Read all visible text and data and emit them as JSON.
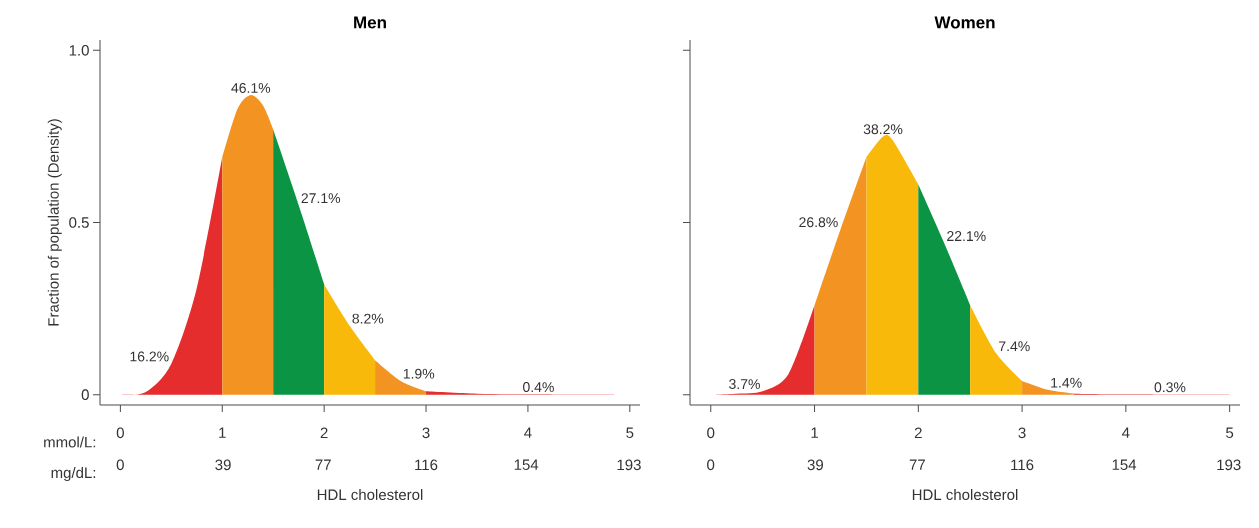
{
  "chart_data": [
    {
      "type": "area",
      "title": "Men",
      "xlabel": "HDL cholesterol",
      "ylabel": "Fraction of population (Density)",
      "xlim": [
        -0.2,
        5.1
      ],
      "xticks": [
        0,
        1,
        2,
        3,
        4,
        5
      ],
      "ylim": [
        -0.03,
        1.03
      ],
      "yticks": [
        0,
        0.5,
        {
          "value": 1,
          "label": "1.0"
        }
      ],
      "x2lim": [
        -7.7,
        197.2
      ],
      "x2ticks": [
        0,
        39,
        77,
        116,
        154,
        193
      ],
      "series": [
        {
          "color": "#e52d2d",
          "x": [
            0,
            0.25,
            0.5,
            0.75,
            1
          ],
          "values": [
            0,
            0.008,
            0.09,
            0.31,
            0.69
          ]
        },
        {
          "color": "#f39322",
          "x": [
            1,
            1.15,
            1.28,
            1.4,
            1.5
          ],
          "values": [
            0.69,
            0.83,
            0.87,
            0.84,
            0.77
          ]
        },
        {
          "color": "#0b9444",
          "x": [
            1.5,
            1.75,
            2
          ],
          "values": [
            0.77,
            0.55,
            0.32
          ]
        },
        {
          "color": "#f9b90b",
          "x": [
            2,
            2.25,
            2.5
          ],
          "values": [
            0.32,
            0.2,
            0.1
          ]
        },
        {
          "color": "#f39322",
          "x": [
            2.5,
            2.75,
            3
          ],
          "values": [
            0.1,
            0.04,
            0.01
          ]
        },
        {
          "color": "#e52d2d",
          "x": [
            3,
            3.5,
            4,
            4.85
          ],
          "values": [
            0.01,
            0.003,
            0.001,
            0
          ]
        }
      ],
      "annotations": [
        "16.2%",
        "46.1%",
        "27.1%",
        "8.2%",
        "1.9%",
        "0.4%",
        "mmol/L:",
        "mg/dL:"
      ]
    },
    {
      "type": "area",
      "title": "Women",
      "xlabel": "HDL cholesterol",
      "tick_labels": "x",
      "xlim": [
        -0.2,
        5.1
      ],
      "xticks": [
        0,
        1,
        2,
        3,
        4,
        5
      ],
      "ylim": [
        -0.03,
        1.03
      ],
      "yticks": [
        {
          "value": 0,
          "label": null
        },
        {
          "value": 0.5,
          "label": null
        },
        {
          "value": 1,
          "label": null
        }
      ],
      "x2lim": [
        -7.7,
        197.2
      ],
      "x2ticks": [
        0,
        39,
        77,
        116,
        154,
        193
      ],
      "series": [
        {
          "color": "#e52d2d",
          "x": [
            0,
            0.25,
            0.5,
            0.75,
            1
          ],
          "values": [
            0,
            0.003,
            0.01,
            0.06,
            0.26
          ]
        },
        {
          "color": "#f39322",
          "x": [
            1,
            1.25,
            1.5
          ],
          "values": [
            0.26,
            0.48,
            0.69
          ]
        },
        {
          "color": "#f9b90b",
          "x": [
            1.5,
            1.66,
            1.75,
            2
          ],
          "values": [
            0.69,
            0.75,
            0.74,
            0.61
          ]
        },
        {
          "color": "#0b9444",
          "x": [
            2,
            2.25,
            2.5
          ],
          "values": [
            0.61,
            0.44,
            0.26
          ]
        },
        {
          "color": "#f9b90b",
          "x": [
            2.5,
            2.75,
            3
          ],
          "values": [
            0.26,
            0.12,
            0.04
          ]
        },
        {
          "color": "#f39322",
          "x": [
            3,
            3.25,
            3.5
          ],
          "values": [
            0.04,
            0.014,
            0.003
          ]
        },
        {
          "color": "#e52d2d",
          "x": [
            3.5,
            4,
            5
          ],
          "values": [
            0.003,
            0.001,
            0
          ]
        }
      ],
      "annotations": [
        "3.7%",
        "26.8%",
        "38.2%",
        "22.1%",
        "7.4%",
        "1.4%",
        "0.3%"
      ]
    }
  ]
}
